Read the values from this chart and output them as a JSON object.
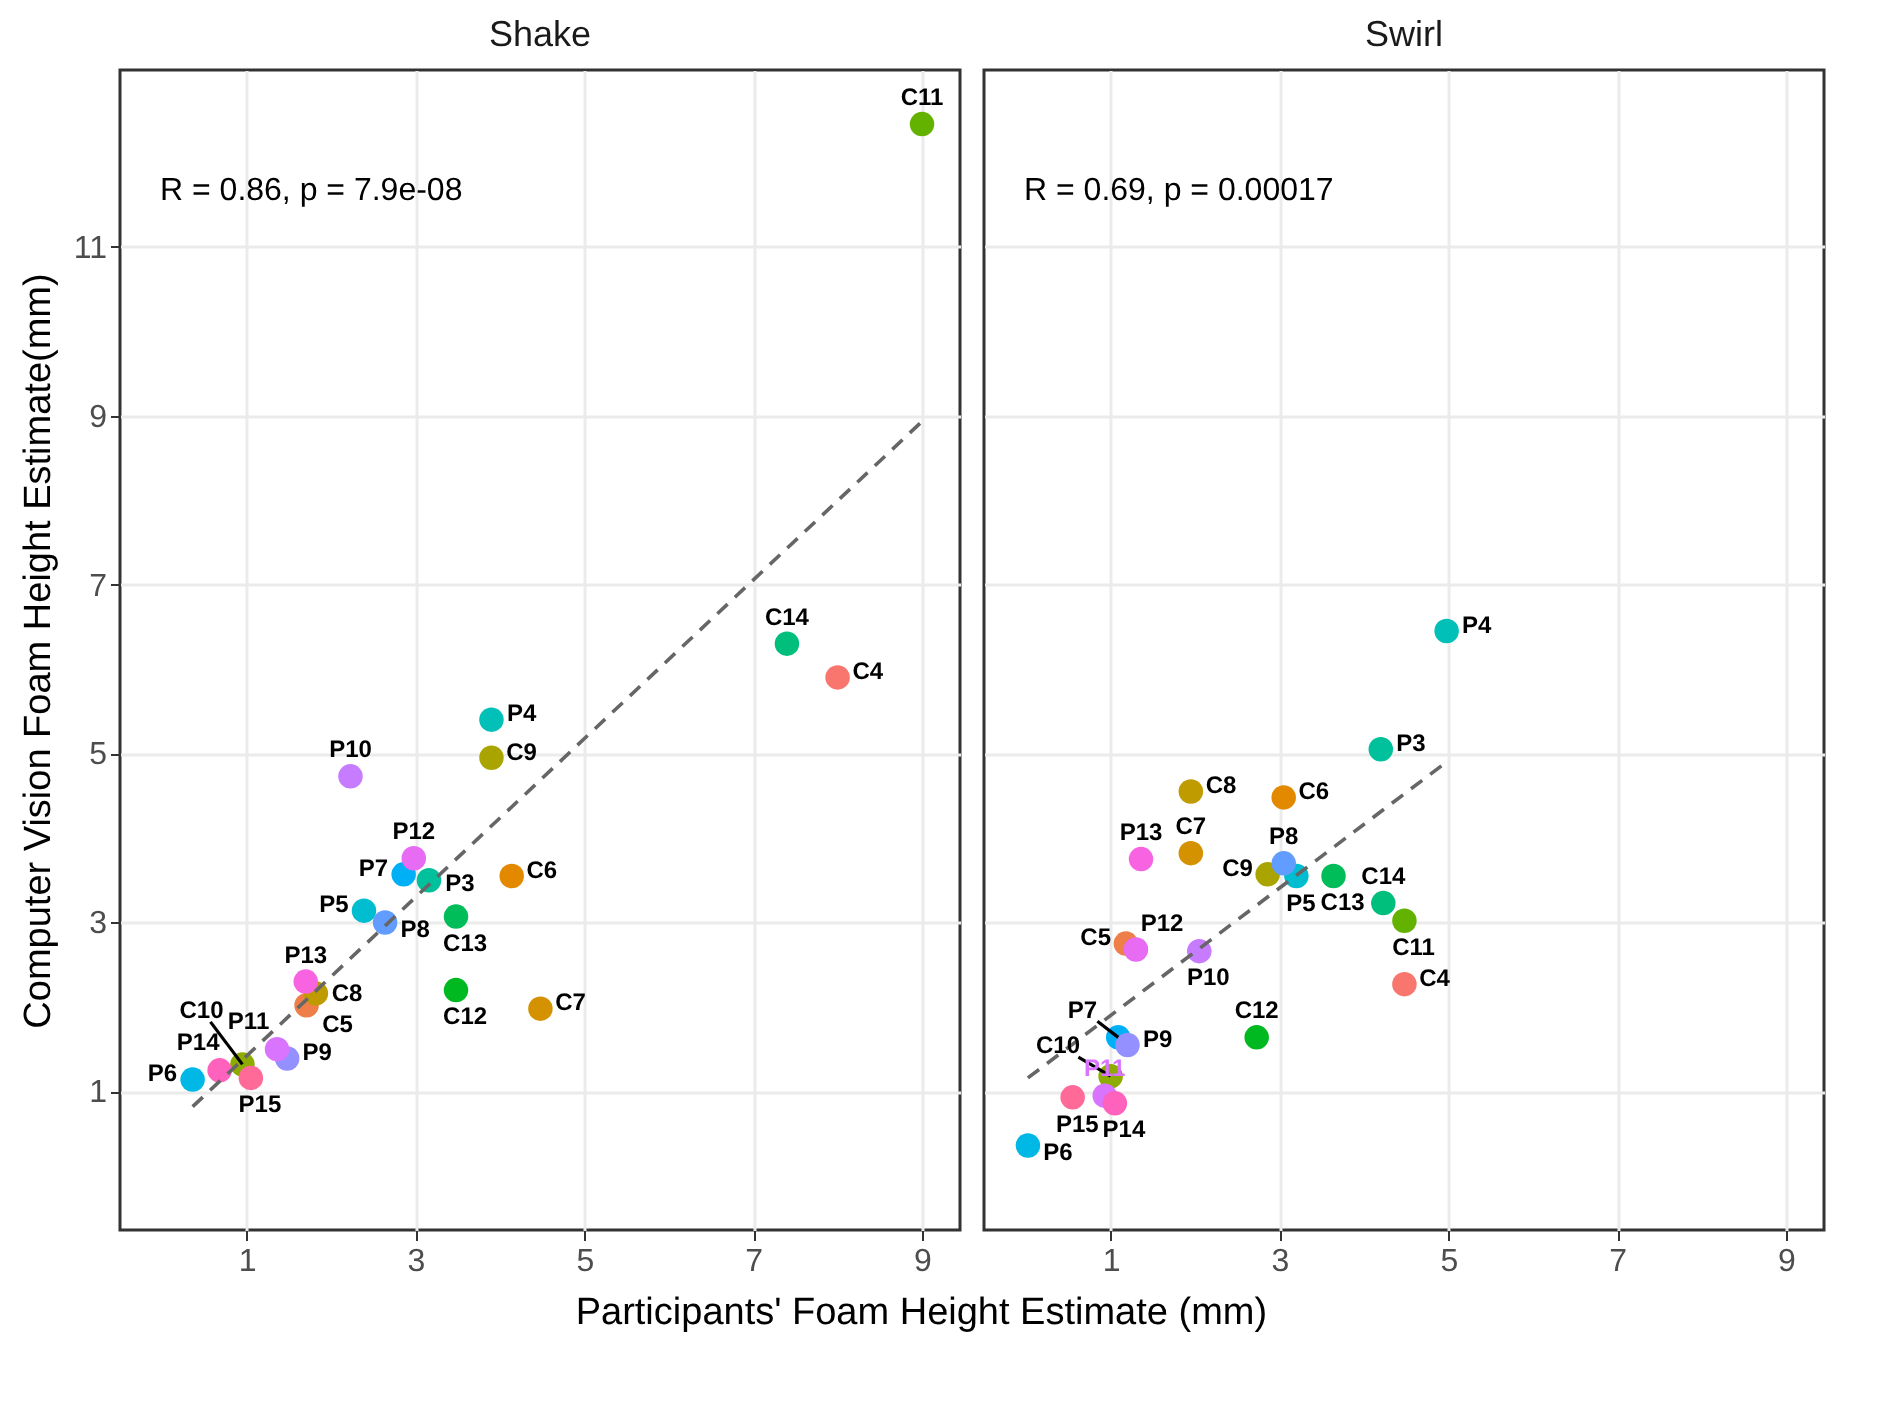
{
  "chart_data": [
    {
      "type": "scatter",
      "title": "Shake",
      "xlabel": "Participants' Foam Height Estimate (mm)",
      "ylabel": "Computer Vision Foam Height Estimate(mm)",
      "annotations": [
        "R = 0.86, p = 7.9e-08"
      ],
      "xlim": [
        -0.5,
        9.45
      ],
      "ylim": [
        -0.64,
        13.09
      ],
      "xticks": [
        1,
        3,
        5,
        7,
        9
      ],
      "yticks": [
        1,
        3,
        5,
        7,
        9,
        11
      ],
      "grid": true,
      "legend": false,
      "marker": "circle",
      "series": [
        {
          "name": "C4",
          "color": "#F8766D",
          "x": [
            8.0
          ],
          "values": [
            5.9
          ]
        },
        {
          "name": "C5",
          "color": "#EF7F49",
          "x": [
            1.71
          ],
          "values": [
            2.02
          ]
        },
        {
          "name": "C6",
          "color": "#E38900",
          "x": [
            4.14
          ],
          "values": [
            3.55
          ]
        },
        {
          "name": "C7",
          "color": "#D49200",
          "x": [
            4.48
          ],
          "values": [
            1.98
          ]
        },
        {
          "name": "C8",
          "color": "#C09B00",
          "x": [
            1.82
          ],
          "values": [
            2.16
          ]
        },
        {
          "name": "C9",
          "color": "#A9A400",
          "x": [
            3.9
          ],
          "values": [
            4.95
          ]
        },
        {
          "name": "C10",
          "color": "#8EAB00",
          "x": [
            0.95
          ],
          "values": [
            1.32
          ]
        },
        {
          "name": "C11",
          "color": "#64B200",
          "x": [
            9.0
          ],
          "values": [
            12.45
          ]
        },
        {
          "name": "C12",
          "color": "#00B81F",
          "x": [
            3.48
          ],
          "values": [
            2.2
          ]
        },
        {
          "name": "C13",
          "color": "#00BC59",
          "x": [
            3.48
          ],
          "values": [
            3.07
          ]
        },
        {
          "name": "C14",
          "color": "#00BF7D",
          "x": [
            7.4
          ],
          "values": [
            6.3
          ]
        },
        {
          "name": "P3",
          "color": "#00C19C",
          "x": [
            3.16
          ],
          "values": [
            3.5
          ]
        },
        {
          "name": "P4",
          "color": "#00C0B8",
          "x": [
            3.9
          ],
          "values": [
            5.4
          ]
        },
        {
          "name": "P5",
          "color": "#00BDD0",
          "x": [
            2.39
          ],
          "values": [
            3.14
          ]
        },
        {
          "name": "P6",
          "color": "#00B8E5",
          "x": [
            0.36
          ],
          "values": [
            1.14
          ]
        },
        {
          "name": "P7",
          "color": "#00B0F6",
          "x": [
            2.86
          ],
          "values": [
            3.57
          ]
        },
        {
          "name": "P8",
          "color": "#619CFF",
          "x": [
            2.64
          ],
          "values": [
            3.0
          ]
        },
        {
          "name": "P9",
          "color": "#9590FF",
          "x": [
            1.48
          ],
          "values": [
            1.39
          ]
        },
        {
          "name": "P10",
          "color": "#C77CFF",
          "x": [
            2.23
          ],
          "values": [
            4.73
          ]
        },
        {
          "name": "P11",
          "color": "#D874FD",
          "x": [
            1.36
          ],
          "values": [
            1.5
          ]
        },
        {
          "name": "P12",
          "color": "#E76BF3",
          "x": [
            2.98
          ],
          "values": [
            3.76
          ]
        },
        {
          "name": "P13",
          "color": "#F763E0",
          "x": [
            1.7
          ],
          "values": [
            2.3
          ]
        },
        {
          "name": "P14",
          "color": "#FF62BC",
          "x": [
            0.68
          ],
          "values": [
            1.25
          ]
        },
        {
          "name": "P15",
          "color": "#FF6A98",
          "x": [
            1.05
          ],
          "values": [
            1.16
          ]
        },
        {
          "type": "line",
          "color": "#666666",
          "line_style": "dashed",
          "marker": "none",
          "x": [
            0.36,
            9.0
          ],
          "values": [
            0.82,
            8.93
          ]
        }
      ]
    },
    {
      "type": "scatter",
      "title": "Swirl",
      "annotations": [
        "R = 0.69, p = 0.00017"
      ],
      "xlim": [
        -0.5,
        9.45
      ],
      "ylim": [
        -0.64,
        13.09
      ],
      "xticks": [
        1,
        3,
        5,
        7,
        9
      ],
      "yticks": [
        1,
        3,
        5,
        7,
        9,
        11
      ],
      "grid": true,
      "legend": false,
      "marker": "circle",
      "tick_labels": "x",
      "series": [
        {
          "name": "C4",
          "color": "#F8766D",
          "x": [
            4.48
          ],
          "values": [
            2.27
          ]
        },
        {
          "name": "C5",
          "color": "#EF7F49",
          "x": [
            1.18
          ],
          "values": [
            2.75
          ]
        },
        {
          "name": "C6",
          "color": "#E38900",
          "x": [
            3.05
          ],
          "values": [
            4.48
          ]
        },
        {
          "name": "C7",
          "color": "#D49200",
          "x": [
            1.95
          ],
          "values": [
            3.82
          ]
        },
        {
          "name": "C8",
          "color": "#C09B00",
          "x": [
            1.95
          ],
          "values": [
            4.55
          ]
        },
        {
          "name": "C9",
          "color": "#A9A400",
          "x": [
            2.86
          ],
          "values": [
            3.57
          ]
        },
        {
          "name": "C10",
          "color": "#8EAB00",
          "x": [
            1.0
          ],
          "values": [
            1.18
          ]
        },
        {
          "name": "C11",
          "color": "#64B200",
          "x": [
            4.48
          ],
          "values": [
            3.02
          ]
        },
        {
          "name": "C12",
          "color": "#00B81F",
          "x": [
            2.73
          ],
          "values": [
            1.64
          ]
        },
        {
          "name": "C13",
          "color": "#00BC59",
          "x": [
            3.64
          ],
          "values": [
            3.55
          ]
        },
        {
          "name": "C14",
          "color": "#00BF7D",
          "x": [
            4.23
          ],
          "values": [
            3.23
          ]
        },
        {
          "name": "P3",
          "color": "#00C19C",
          "x": [
            4.2
          ],
          "values": [
            5.05
          ]
        },
        {
          "name": "P4",
          "color": "#00C0B8",
          "x": [
            4.98
          ],
          "values": [
            6.45
          ]
        },
        {
          "name": "P5",
          "color": "#00BDD0",
          "x": [
            3.2
          ],
          "values": [
            3.55
          ]
        },
        {
          "name": "P6",
          "color": "#00B8E5",
          "x": [
            0.02
          ],
          "values": [
            0.36
          ]
        },
        {
          "name": "P7",
          "color": "#00B0F6",
          "x": [
            1.09
          ],
          "values": [
            1.64
          ]
        },
        {
          "name": "P8",
          "color": "#619CFF",
          "x": [
            3.05
          ],
          "values": [
            3.7
          ]
        },
        {
          "name": "P9",
          "color": "#9590FF",
          "x": [
            1.2
          ],
          "values": [
            1.55
          ]
        },
        {
          "name": "P10",
          "color": "#C77CFF",
          "x": [
            2.05
          ],
          "values": [
            2.66
          ]
        },
        {
          "name": "P11",
          "color": "#D874FD",
          "x": [
            0.93
          ],
          "values": [
            0.95
          ]
        },
        {
          "name": "P12",
          "color": "#E76BF3",
          "x": [
            1.3
          ],
          "values": [
            2.68
          ]
        },
        {
          "name": "P13",
          "color": "#F763E0",
          "x": [
            1.36
          ],
          "values": [
            3.75
          ]
        },
        {
          "name": "P14",
          "color": "#FF62BC",
          "x": [
            1.05
          ],
          "values": [
            0.86
          ]
        },
        {
          "name": "P15",
          "color": "#FF6A98",
          "x": [
            0.55
          ],
          "values": [
            0.93
          ]
        },
        {
          "type": "line",
          "color": "#666666",
          "line_style": "dashed",
          "marker": "none",
          "x": [
            0.02,
            4.98
          ],
          "values": [
            1.16,
            4.9
          ]
        }
      ]
    }
  ]
}
